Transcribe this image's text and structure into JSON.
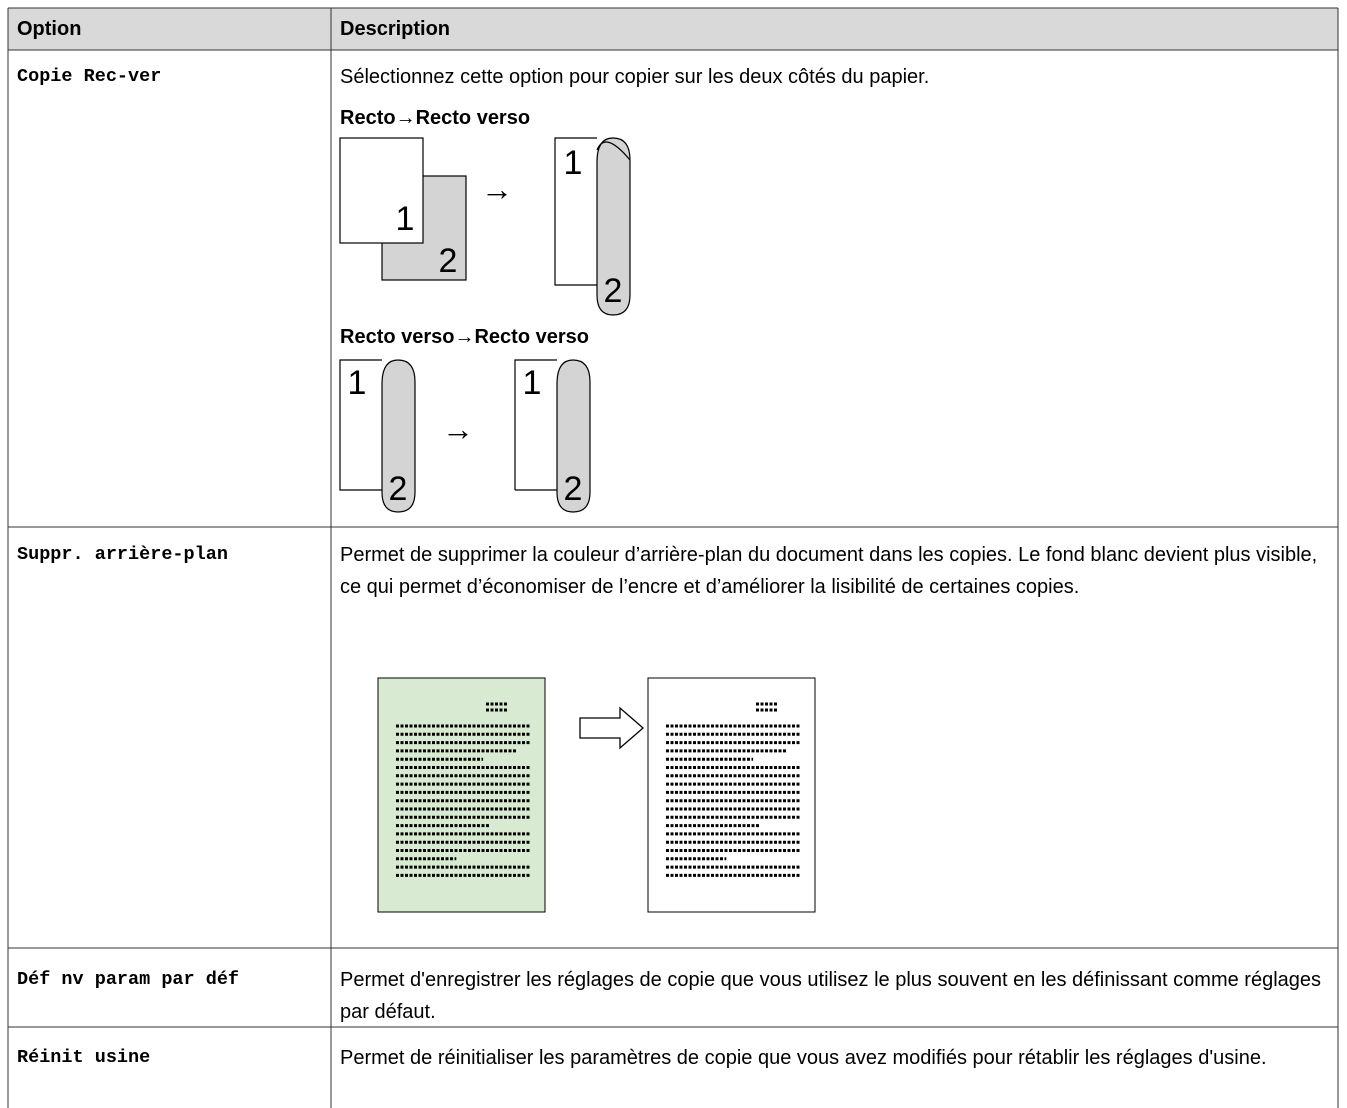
{
  "header": {
    "option": "Option",
    "description": "Description"
  },
  "rows": [
    {
      "option": "Copie Rec-ver",
      "description": "Sélectionnez cette option pour copier sur les deux côtés du papier.",
      "figures": [
        {
          "title": "Recto→Recto verso",
          "source_labels": [
            "1",
            "2"
          ],
          "arrow": "→",
          "result_labels": [
            "1",
            "2"
          ]
        },
        {
          "title": "Recto verso→Recto verso",
          "source_labels": [
            "1",
            "2"
          ],
          "arrow": "→",
          "result_labels": [
            "1",
            "2"
          ]
        }
      ]
    },
    {
      "option": "Suppr. arrière-plan",
      "description": "Permet de supprimer la couleur d’arrière-plan du document dans les copies. Le fond blanc devient plus visible, ce qui permet d’économiser de l’encre et d’améliorer la lisibilité de certaines copies."
    },
    {
      "option": "Déf nv param par déf",
      "description": "Permet d'enregistrer les réglages de copie que vous utilisez le plus souvent en les définissant comme réglages par défaut."
    },
    {
      "option": "Réinit usine",
      "description": "Permet de réinitialiser les paramètres de copie que vous avez modifiés pour rétablir les réglages d'usine."
    }
  ]
}
